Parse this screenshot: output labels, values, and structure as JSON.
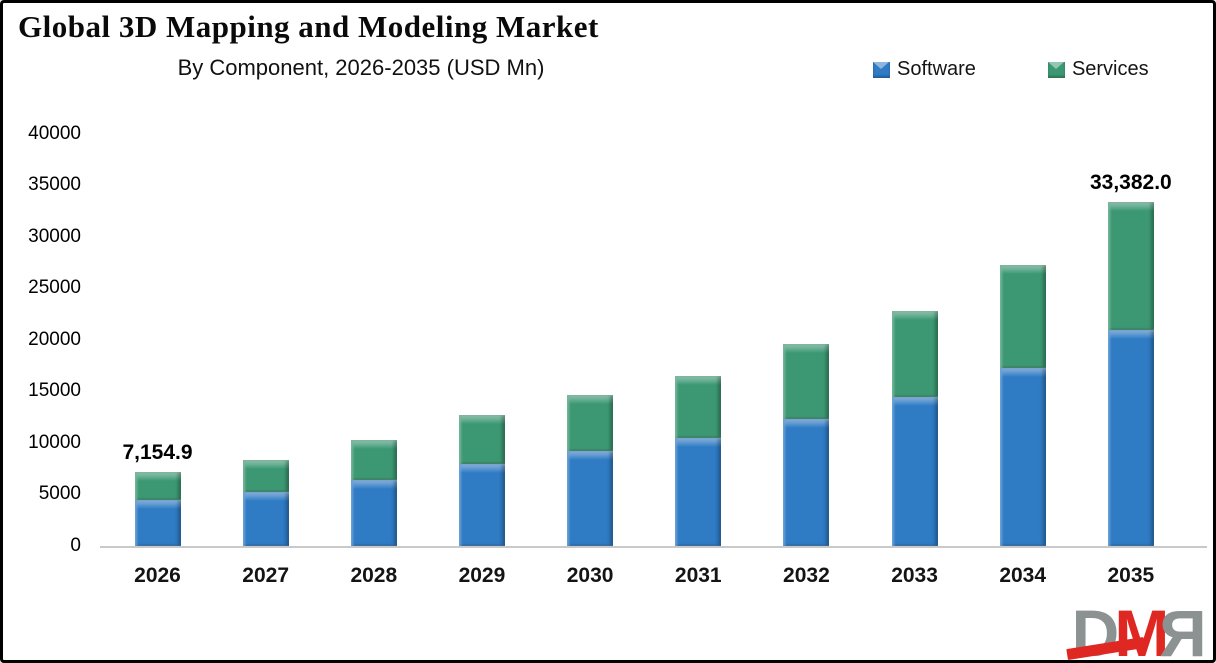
{
  "header": {
    "title": "Global 3D Mapping and Modeling Market",
    "subtitle": "By Component, 2026-2035 (USD Mn)"
  },
  "legend": [
    {
      "label": "Software",
      "color": "#2f7bc4"
    },
    {
      "label": "Services",
      "color": "#3c9873"
    }
  ],
  "chart_data": {
    "type": "bar",
    "stacked": true,
    "grid": false,
    "legend_position": "top-right",
    "categories": [
      "2026",
      "2027",
      "2028",
      "2029",
      "2030",
      "2031",
      "2032",
      "2033",
      "2034",
      "2035"
    ],
    "series": [
      {
        "name": "Software",
        "color": "#2f7bc4",
        "values": [
          4467.0,
          5243,
          6408,
          7962,
          9224,
          10487,
          12332,
          14468,
          17284,
          20972
        ]
      },
      {
        "name": "Services",
        "color": "#3c9873",
        "values": [
          2687.9,
          3107,
          3884,
          4758,
          5438,
          6020,
          7283,
          8351,
          10002,
          12410
        ]
      }
    ],
    "totals": [
      7154.9,
      8350,
      10292,
      12720,
      14662,
      16507,
      19615,
      22819,
      27286,
      33382.0
    ],
    "data_labels": {
      "2026": "7,154.9",
      "2035": "33,382.0"
    },
    "y_axis": {
      "min": 0,
      "max": 40000,
      "step": 5000,
      "ticks": [
        "0",
        "5000",
        "10000",
        "15000",
        "20000",
        "25000",
        "30000",
        "35000",
        "40000"
      ]
    },
    "xlabel": "",
    "ylabel": ""
  },
  "logo": {
    "text": "DMR",
    "letters": [
      "D",
      "M",
      "R"
    ],
    "gray": "#8b9291",
    "red": "#e02823"
  }
}
